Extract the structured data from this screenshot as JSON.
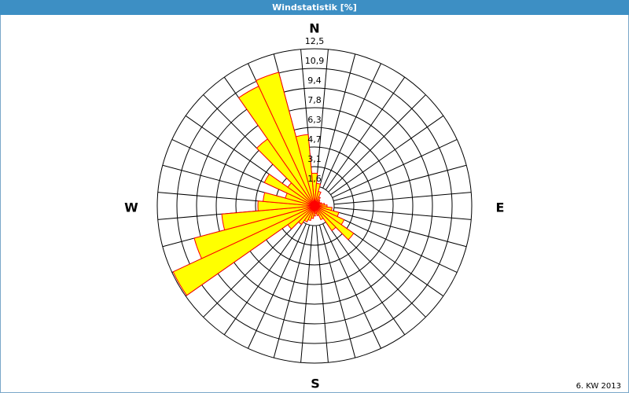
{
  "chart_data": {
    "type": "windrose",
    "title": "Windstatistik [%]",
    "footer": "6. KW 2013",
    "compass": [
      "N",
      "E",
      "S",
      "W"
    ],
    "x": [
      0,
      10,
      20,
      30,
      40,
      50,
      60,
      70,
      80,
      90,
      100,
      110,
      120,
      130,
      140,
      150,
      160,
      170,
      180,
      190,
      200,
      210,
      220,
      230,
      240,
      250,
      260,
      270,
      280,
      290,
      300,
      310,
      320,
      330,
      340,
      350
    ],
    "values": [
      2.6,
      1.8,
      1.2,
      0.8,
      0.6,
      0.5,
      0.5,
      0.6,
      0.8,
      1.0,
      1.4,
      2.0,
      2.6,
      3.8,
      2.4,
      1.2,
      0.8,
      0.6,
      0.8,
      1.0,
      1.2,
      1.4,
      1.8,
      2.6,
      12.4,
      9.9,
      7.4,
      4.5,
      4.1,
      2.4,
      4.4,
      2.6,
      6.5,
      10.5,
      11.0,
      5.7
    ],
    "color": "#ffff00",
    "edge_color": "#ff0000",
    "ylim": [
      0,
      12.5
    ],
    "yticks": [
      {
        "value": 1.5625,
        "label": "1,6"
      },
      {
        "value": 3.125,
        "label": "3,1"
      },
      {
        "value": 4.6875,
        "label": "4,7"
      },
      {
        "value": 6.25,
        "label": "6,3"
      },
      {
        "value": 7.8125,
        "label": "7,8"
      },
      {
        "value": 9.375,
        "label": "9,4"
      },
      {
        "value": 10.9375,
        "label": "10,9"
      },
      {
        "value": 12.5,
        "label": "12,5"
      }
    ],
    "grid": true
  }
}
